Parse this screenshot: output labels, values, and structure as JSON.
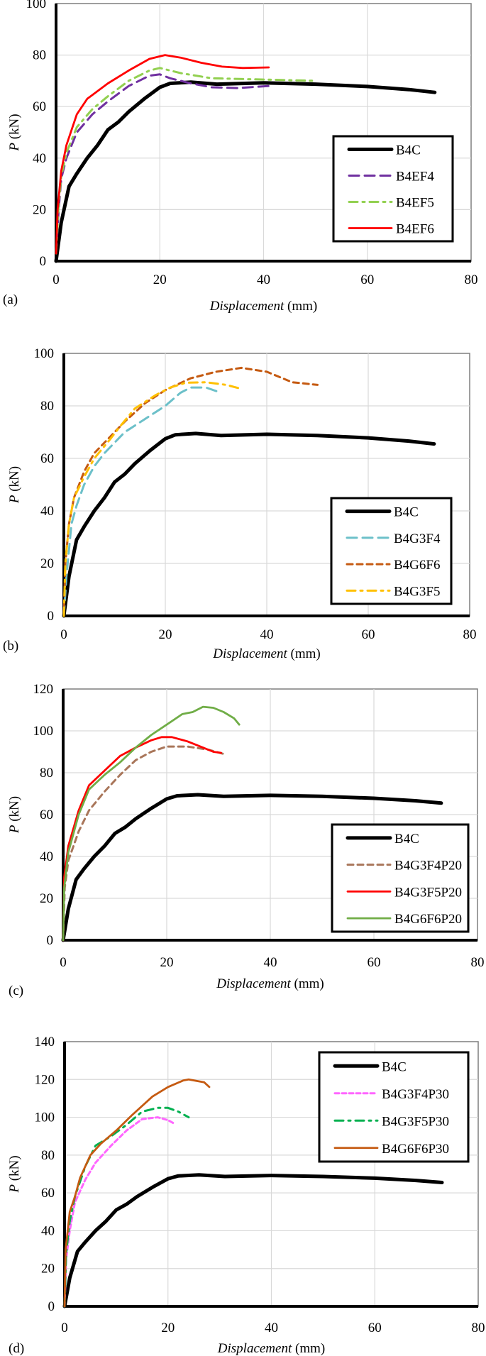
{
  "chart_data": [
    {
      "type": "line",
      "panel_label": "(a)",
      "xlabel": {
        "italic": "Displacement",
        "unit": "(mm)"
      },
      "ylabel": {
        "italic": "P",
        "unit": "(kN)"
      },
      "xlim": [
        0,
        80
      ],
      "ylim": [
        0,
        100
      ],
      "xticks": [
        0,
        20,
        40,
        60,
        80
      ],
      "yticks": [
        0,
        20,
        40,
        60,
        80,
        100
      ],
      "grid": true,
      "legend_position": "center-right",
      "series": [
        {
          "name": "B4C",
          "color": "#000000",
          "style": "solid-thick",
          "x": [
            0,
            1,
            2.5,
            4,
            6,
            8,
            10,
            12,
            14,
            17,
            20,
            22,
            26,
            31,
            40,
            50,
            60,
            68,
            73
          ],
          "y": [
            0,
            15,
            29,
            34,
            40,
            45,
            51,
            54,
            58,
            63,
            67.5,
            69,
            69.5,
            68.7,
            69.2,
            68.7,
            67.8,
            66.6,
            65.5
          ]
        },
        {
          "name": "B4EF4",
          "color": "#7030a0",
          "style": "long-dash",
          "x": [
            0,
            0.5,
            1,
            2,
            4,
            7,
            10,
            14,
            18,
            20,
            22,
            26,
            30,
            35,
            41
          ],
          "y": [
            3,
            20,
            32,
            40,
            50,
            57,
            62,
            68,
            72,
            72.5,
            71,
            69,
            67.5,
            67.2,
            68
          ]
        },
        {
          "name": "B4EF5",
          "color": "#92d050",
          "style": "dash-dot",
          "x": [
            0,
            0.5,
            1,
            2,
            4,
            7,
            10,
            14,
            18,
            20,
            24,
            30,
            40,
            50
          ],
          "y": [
            3,
            22,
            33,
            42,
            52,
            59,
            64,
            70,
            74,
            75,
            73,
            71,
            70.5,
            70
          ]
        },
        {
          "name": "B4EF6",
          "color": "#ff0000",
          "style": "solid",
          "x": [
            0,
            0.3,
            1,
            2,
            4,
            6,
            10,
            14,
            18,
            21,
            24,
            28,
            32,
            36,
            41
          ],
          "y": [
            3,
            20,
            35,
            45,
            57,
            63,
            69,
            74,
            78.5,
            80,
            79,
            77,
            75.5,
            75,
            75.2
          ]
        }
      ]
    },
    {
      "type": "line",
      "panel_label": "(b)",
      "xlabel": {
        "italic": "Displacement",
        "unit": "(mm)"
      },
      "ylabel": {
        "italic": "P",
        "unit": "(kN)"
      },
      "xlim": [
        0,
        80
      ],
      "ylim": [
        0,
        100
      ],
      "xticks": [
        0,
        20,
        40,
        60,
        80
      ],
      "yticks": [
        0,
        20,
        40,
        60,
        80,
        100
      ],
      "grid": true,
      "legend_position": "bottom-right",
      "series": [
        {
          "name": "B4C",
          "color": "#000000",
          "style": "solid-thick",
          "x": [
            0,
            1,
            2.5,
            4,
            6,
            8,
            10,
            12,
            14,
            17,
            20,
            22,
            26,
            31,
            40,
            50,
            60,
            68,
            73
          ],
          "y": [
            0,
            15,
            29,
            34,
            40,
            45,
            51,
            54,
            58,
            63,
            67.5,
            69,
            69.5,
            68.7,
            69.2,
            68.7,
            67.8,
            66.6,
            65.5
          ]
        },
        {
          "name": "B4G3F4",
          "color": "#6cc0c9",
          "style": "long-dash",
          "x": [
            0,
            0.5,
            1,
            1.5,
            2.5,
            4,
            6,
            8,
            10,
            12,
            16,
            20,
            23,
            25,
            28,
            31
          ],
          "y": [
            0,
            15,
            25,
            35,
            42,
            50,
            57,
            62,
            66,
            70,
            75,
            80,
            85,
            87,
            87,
            85
          ]
        },
        {
          "name": "B4G6F6",
          "color": "#c55a11",
          "style": "short-dash",
          "x": [
            0,
            0.3,
            1,
            2,
            4,
            6,
            9,
            12,
            16,
            20,
            25,
            30,
            35,
            40,
            45,
            50
          ],
          "y": [
            0,
            20,
            35,
            45,
            55,
            62,
            68,
            74,
            81,
            86,
            90.5,
            93,
            94.5,
            93,
            89,
            88
          ]
        },
        {
          "name": "B4G3F5",
          "color": "#ffc000",
          "style": "dash-dot",
          "x": [
            0,
            0.3,
            1,
            2,
            4,
            6,
            9,
            11,
            14,
            18,
            21,
            24,
            28,
            32,
            35
          ],
          "y": [
            0,
            20,
            35,
            45,
            53,
            60,
            67,
            72,
            79,
            84,
            87,
            88.8,
            89,
            88,
            86.5
          ]
        }
      ]
    },
    {
      "type": "line",
      "panel_label": "(c)",
      "xlabel": {
        "italic": "Displacement",
        "unit": "(mm)"
      },
      "ylabel": {
        "italic": "P",
        "unit": "(kN)"
      },
      "xlim": [
        0,
        80
      ],
      "ylim": [
        0,
        120
      ],
      "xticks": [
        0,
        20,
        40,
        60,
        80
      ],
      "yticks": [
        0,
        20,
        40,
        60,
        80,
        100,
        120
      ],
      "grid": true,
      "legend_position": "bottom-right",
      "series": [
        {
          "name": "B4C",
          "color": "#000000",
          "style": "solid-thick",
          "x": [
            0,
            1,
            2.5,
            4,
            6,
            8,
            10,
            12,
            14,
            17,
            20,
            22,
            26,
            31,
            40,
            50,
            60,
            68,
            73
          ],
          "y": [
            0,
            15,
            29,
            34,
            40,
            45,
            51,
            54,
            58,
            63,
            67.5,
            69,
            69.5,
            68.7,
            69.2,
            68.7,
            67.8,
            66.6,
            65.5
          ]
        },
        {
          "name": "B4G3F4P20",
          "color": "#a9765a",
          "style": "short-dash",
          "x": [
            0,
            0.3,
            1,
            3,
            5,
            8,
            11,
            14,
            17,
            20,
            24,
            28,
            31
          ],
          "y": [
            0,
            25,
            38,
            52,
            62,
            71,
            79,
            86,
            90,
            92.5,
            92.5,
            91,
            89
          ]
        },
        {
          "name": "B4G3F5P20",
          "color": "#ff0000",
          "style": "solid",
          "x": [
            0,
            0.2,
            1,
            3,
            5,
            8,
            11,
            14,
            17,
            19,
            21,
            24,
            27,
            29,
            30.5
          ],
          "y": [
            0,
            30,
            45,
            62,
            74,
            81,
            88,
            92,
            95.5,
            97,
            97,
            95,
            92,
            90,
            89.5
          ]
        },
        {
          "name": "B4G6F6P20",
          "color": "#70ad47",
          "style": "solid",
          "x": [
            0,
            0.2,
            1,
            3,
            5,
            8,
            11,
            14,
            17,
            20,
            23,
            25,
            27,
            29,
            31,
            33,
            34
          ],
          "y": [
            0,
            25,
            42,
            60,
            72,
            79,
            85,
            92,
            98,
            103,
            108,
            109,
            111.5,
            111,
            109,
            106,
            103
          ]
        }
      ]
    },
    {
      "type": "line",
      "panel_label": "(d)",
      "xlabel": {
        "italic": "Displacement",
        "unit": "(mm)"
      },
      "ylabel": {
        "italic": "P",
        "unit": "(kN)"
      },
      "xlim": [
        0,
        80
      ],
      "ylim": [
        0,
        140
      ],
      "xticks": [
        0,
        20,
        40,
        60,
        80
      ],
      "yticks": [
        0,
        20,
        40,
        60,
        80,
        100,
        120,
        140
      ],
      "grid": true,
      "legend_position": "top-right",
      "series": [
        {
          "name": "B4C",
          "color": "#000000",
          "style": "solid-thick",
          "x": [
            0,
            1,
            2.5,
            4,
            6,
            8,
            10,
            12,
            14,
            17,
            20,
            22,
            26,
            31,
            40,
            50,
            60,
            68,
            73
          ],
          "y": [
            0,
            15,
            29,
            34,
            40,
            45,
            51,
            54,
            58,
            63,
            67.5,
            69,
            69.5,
            68.7,
            69.2,
            68.7,
            67.8,
            66.6,
            65.5
          ]
        },
        {
          "name": "B4G3F4P30",
          "color": "#ff66ff",
          "style": "fine-dash",
          "x": [
            0,
            0.3,
            1,
            2,
            4,
            6,
            9,
            12,
            15,
            18,
            20,
            21
          ],
          "y": [
            0,
            25,
            40,
            55,
            67,
            76,
            85,
            93,
            99,
            100,
            98.5,
            97
          ]
        },
        {
          "name": "B4G3F5P30",
          "color": "#00b050",
          "style": "dash-dot",
          "x": [
            0,
            0.3,
            1,
            2,
            4,
            6,
            9,
            12,
            15,
            18,
            20,
            22,
            24
          ],
          "y": [
            0,
            28,
            45,
            58,
            74,
            85,
            90,
            96,
            103,
            105,
            105,
            103,
            100
          ]
        },
        {
          "name": "B4G6F6P30",
          "color": "#c55a11",
          "style": "solid",
          "x": [
            0,
            0.2,
            1,
            2,
            3,
            5,
            7,
            10,
            13,
            17,
            20,
            23,
            24,
            27,
            28
          ],
          "y": [
            0,
            30,
            50,
            58,
            68,
            80,
            86,
            93,
            101,
            111,
            116,
            119.5,
            120,
            118.5,
            116
          ]
        }
      ]
    }
  ]
}
